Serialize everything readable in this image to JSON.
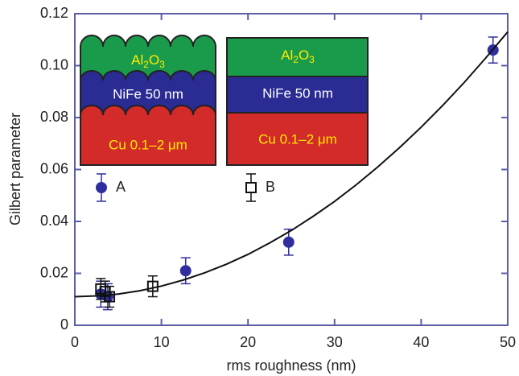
{
  "chart_data": {
    "type": "scatter",
    "x_label": "rms roughness (nm)",
    "y_label": "Gilbert parameter",
    "xlim": [
      0,
      50
    ],
    "ylim": [
      0,
      0.12
    ],
    "xticks": [
      0,
      10,
      20,
      30,
      40,
      50
    ],
    "yticks": [
      0,
      0.02,
      0.04,
      0.06,
      0.08,
      {
        "value": 0.1,
        "label": "0.10"
      },
      0.12
    ],
    "series": [
      {
        "name": "A",
        "marker": "circle",
        "color": "#2e2e9e",
        "x": [
          3,
          3.8,
          12.8,
          24.7,
          48.3
        ],
        "values": [
          0.012,
          0.011,
          0.021,
          0.032,
          0.106
        ],
        "errors": [
          0.005,
          0.005,
          0.005,
          0.005,
          0.005
        ]
      },
      {
        "name": "B",
        "marker": "square",
        "color": "#111111",
        "x": [
          3,
          3.5,
          4,
          9
        ],
        "values": [
          0.014,
          0.013,
          0.011,
          0.015
        ],
        "errors": [
          0.004,
          0.004,
          0.004,
          0.004
        ]
      },
      {
        "marker": "line",
        "color": "#111111",
        "x": [
          0,
          2.5,
          5,
          7.5,
          10,
          12.5,
          15,
          17.5,
          20,
          22.5,
          25,
          27.5,
          30,
          32.5,
          35,
          37.5,
          40,
          42.5,
          45,
          47.5,
          50
        ],
        "values": [
          0.011,
          0.0113,
          0.012,
          0.0133,
          0.0151,
          0.0174,
          0.0202,
          0.0235,
          0.0273,
          0.0317,
          0.0365,
          0.0419,
          0.0477,
          0.0541,
          0.061,
          0.0684,
          0.0763,
          0.0847,
          0.0936,
          0.1031,
          0.113
        ]
      }
    ],
    "insets": [
      {
        "al2o3": [
          "Al",
          "2",
          "O",
          "3"
        ],
        "nife": "NiFe 50 nm",
        "cu": "Cu 0.1–2 μm"
      },
      {
        "al2o3": [
          "Al",
          "2",
          "O",
          "3"
        ],
        "nife": "NiFe 50 nm",
        "cu": "Cu 0.1–2 μm"
      }
    ]
  }
}
